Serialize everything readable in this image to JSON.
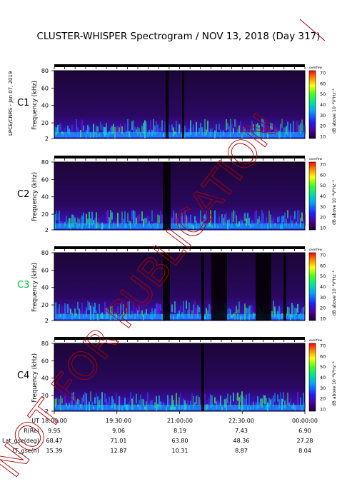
{
  "page": {
    "title": "CLUSTER-WHISPER Spectrogram / NOV 13, 2018 (Day 317)",
    "side_note": "LPCE/CNRS - Jan 07, 2019",
    "watermark": "NOT FOR PUBLICATION"
  },
  "chart_data": {
    "type": "heatmap",
    "panels": [
      {
        "name": "C1",
        "color": "#000000"
      },
      {
        "name": "C2",
        "color": "#000000"
      },
      {
        "name": "C3",
        "color": "#00c040"
      },
      {
        "name": "C4",
        "color": "#000000"
      }
    ],
    "ylabel": "Frequency (kHz)",
    "yticks": [
      "80",
      "60",
      "40",
      "20",
      "2"
    ],
    "ylim": [
      2,
      80
    ],
    "colorbar": {
      "top_label": "overfew",
      "label": "dB above 10⁻⁸V²Hz⁻¹",
      "ticks": [
        "70",
        "60",
        "50",
        "40",
        "30",
        "20",
        "10"
      ],
      "range": [
        10,
        70
      ]
    },
    "x_axis": {
      "rows": [
        {
          "label": "UT",
          "values": [
            "18:00:00",
            "19:30:00",
            "21:00:00",
            "22:30:00",
            "00:00:00"
          ]
        },
        {
          "label": "R(Re)",
          "values": [
            "9.95",
            "9.06",
            "8.19",
            "7.43",
            "6.90"
          ]
        },
        {
          "label": "Lat_gse(deg)",
          "values": [
            "68.47",
            "71.01",
            "63.80",
            "48.36",
            "27.28"
          ]
        },
        {
          "label": "LT_gse(h)",
          "values": [
            "15.39",
            "12.87",
            "10.31",
            "8.87",
            "8.04"
          ]
        }
      ]
    }
  }
}
